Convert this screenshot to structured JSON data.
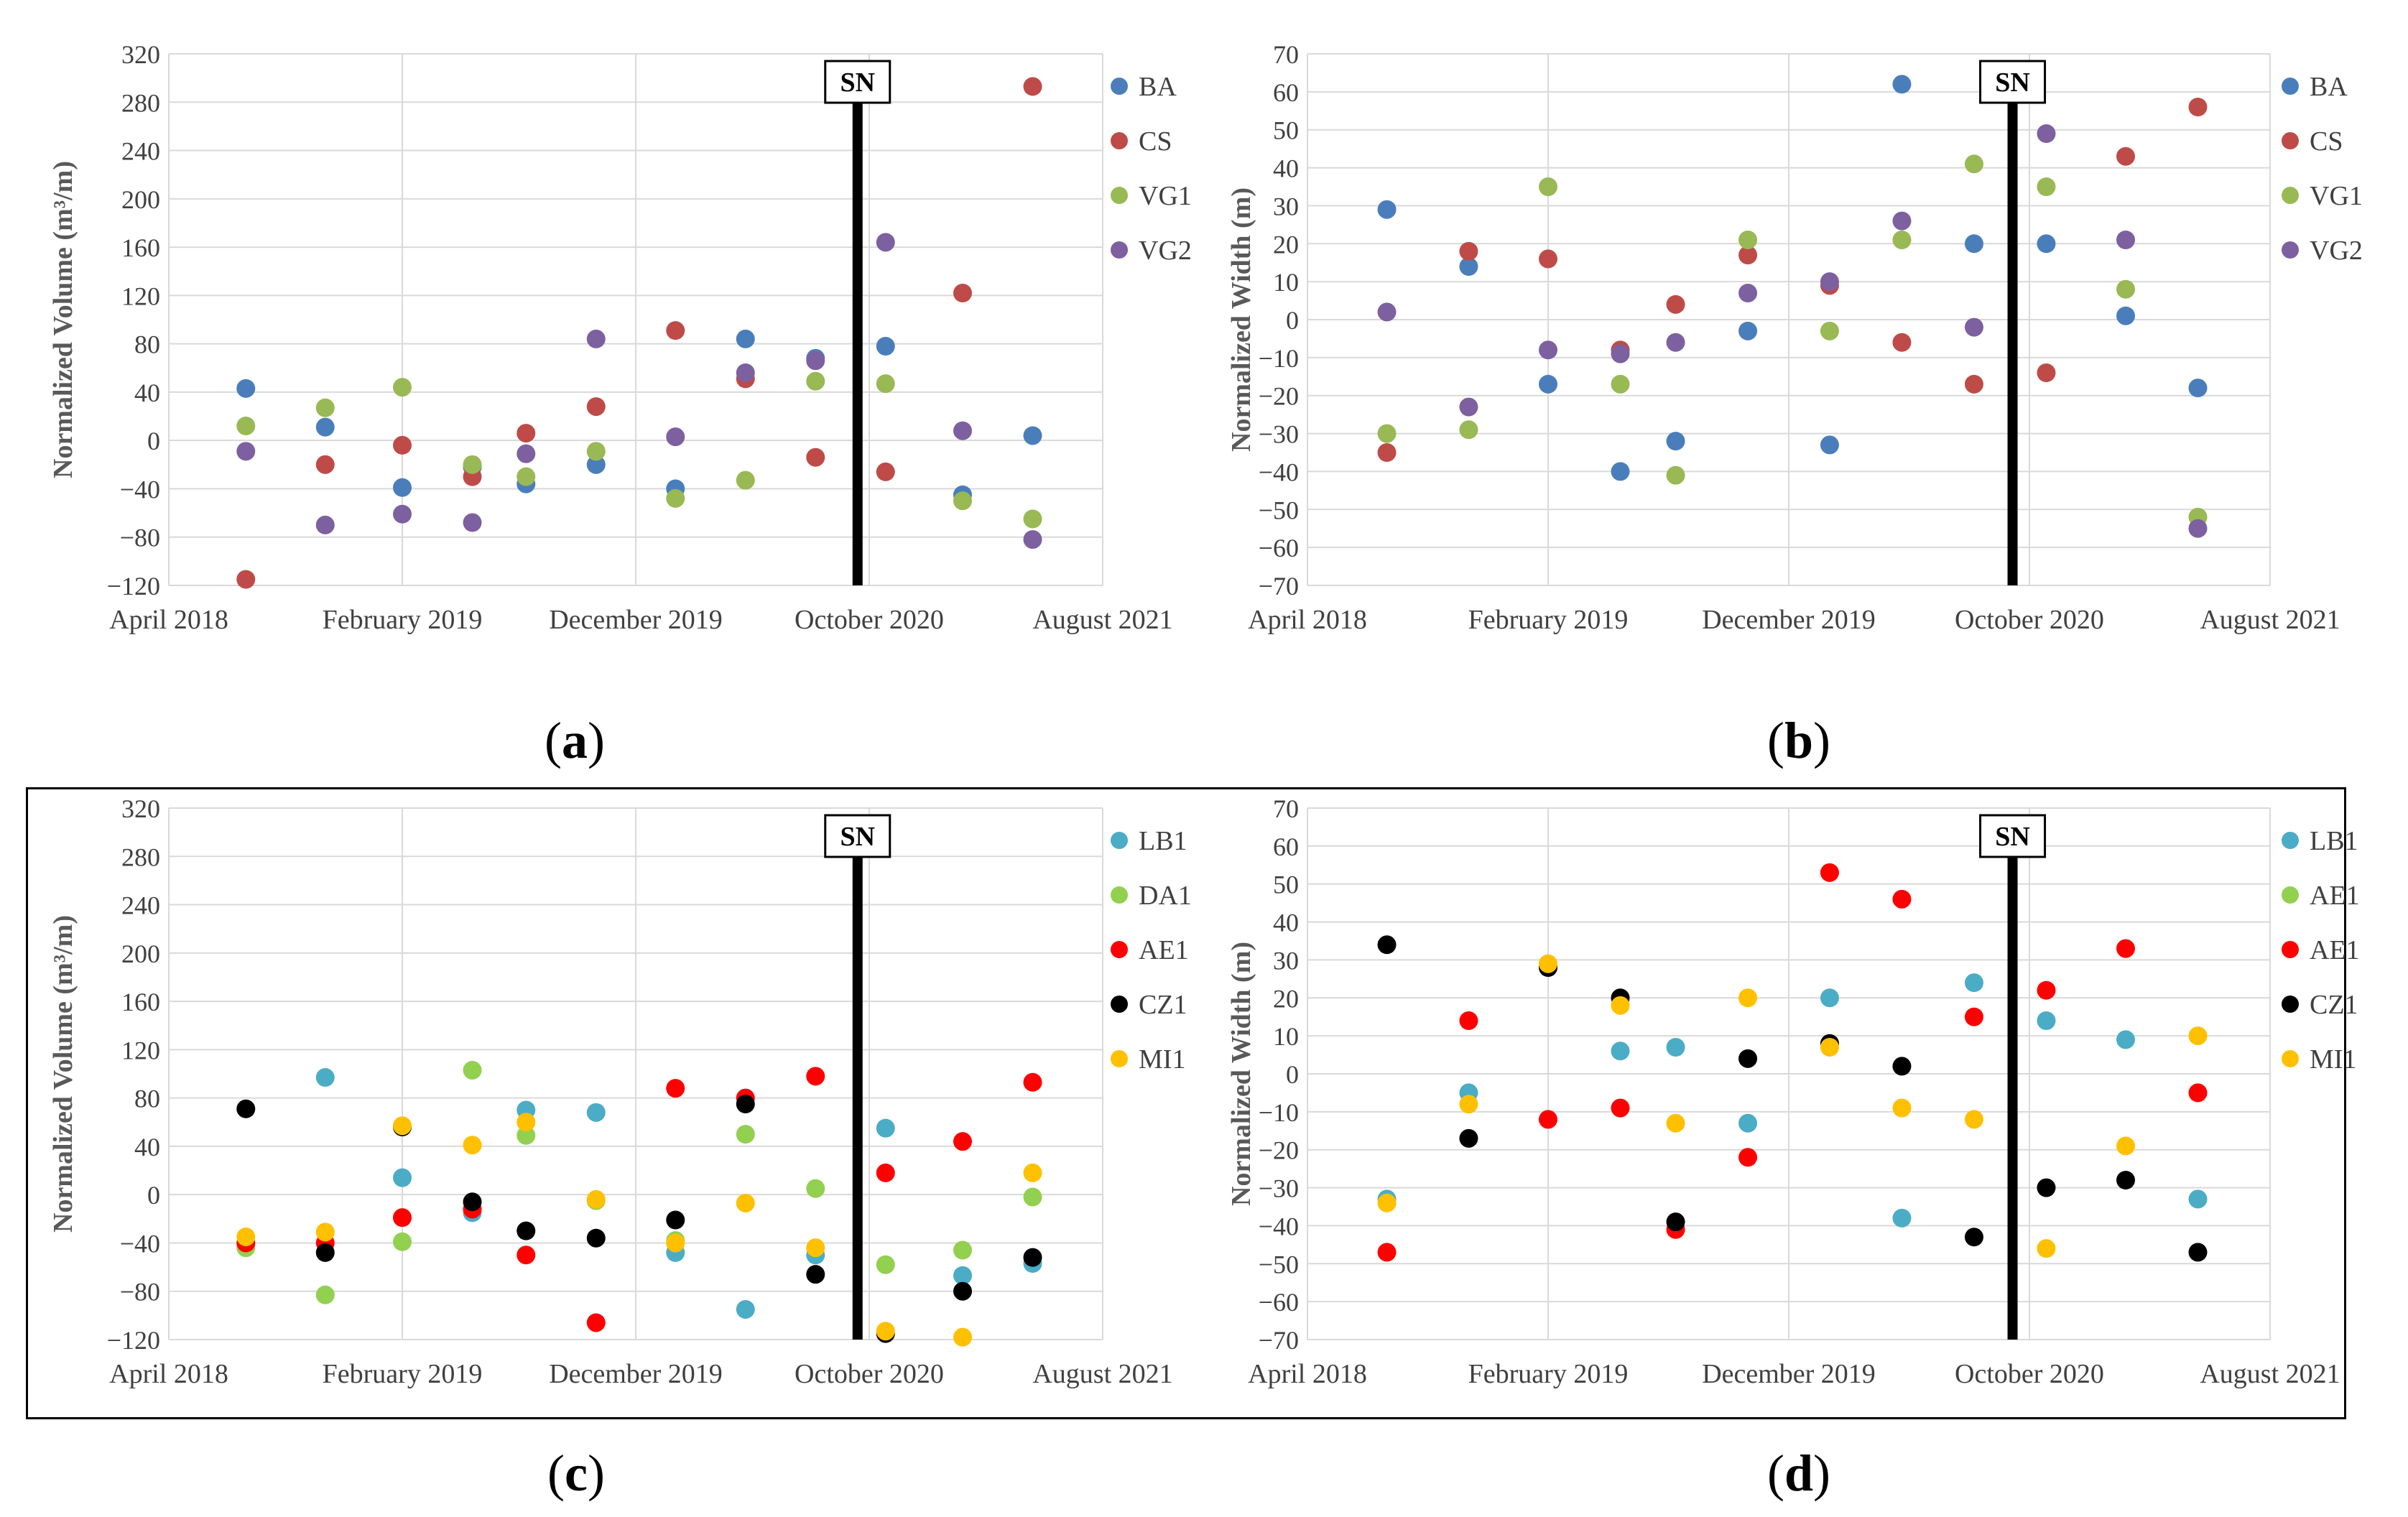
{
  "figure": {
    "captions": [
      "(a)",
      "(b)",
      "(c)",
      "(d)"
    ],
    "marker_label": "SN"
  },
  "chart_data": [
    {
      "type": "scatter",
      "panel": "a",
      "ylabel": "Normalized Volume (m³/m)",
      "ylim": [
        -120,
        320
      ],
      "yticks": [
        -120,
        -80,
        -40,
        0,
        40,
        80,
        120,
        160,
        200,
        240,
        280,
        320
      ],
      "xticklabels": [
        "April 2018",
        "February 2019",
        "December 2019",
        "October 2020",
        "August 2021"
      ],
      "xlim": [
        0,
        40
      ],
      "sn_x": 29.5,
      "series": [
        {
          "name": "BA",
          "color": "#4a7ebb",
          "points": [
            [
              3.3,
              43
            ],
            [
              6.7,
              11
            ],
            [
              10,
              -39
            ],
            [
              13,
              -22
            ],
            [
              15.3,
              -36
            ],
            [
              18.3,
              -20
            ],
            [
              21.7,
              -40
            ],
            [
              24.7,
              84
            ],
            [
              27.7,
              68
            ],
            [
              30.7,
              78
            ],
            [
              34,
              -45
            ],
            [
              37,
              4
            ]
          ]
        },
        {
          "name": "CS",
          "color": "#be4b48",
          "points": [
            [
              3.3,
              -115
            ],
            [
              6.7,
              -20
            ],
            [
              10,
              -4
            ],
            [
              13,
              -30
            ],
            [
              15.3,
              6
            ],
            [
              18.3,
              28
            ],
            [
              21.7,
              91
            ],
            [
              24.7,
              51
            ],
            [
              27.7,
              -14
            ],
            [
              30.7,
              -26
            ],
            [
              34,
              122
            ],
            [
              37,
              293
            ]
          ]
        },
        {
          "name": "VG1",
          "color": "#98b954",
          "points": [
            [
              3.3,
              12
            ],
            [
              6.7,
              27
            ],
            [
              10,
              44
            ],
            [
              13,
              -20
            ],
            [
              15.3,
              -30
            ],
            [
              18.3,
              -9
            ],
            [
              21.7,
              -48
            ],
            [
              24.7,
              -33
            ],
            [
              27.7,
              49
            ],
            [
              30.7,
              47
            ],
            [
              34,
              -50
            ],
            [
              37,
              -65
            ]
          ]
        },
        {
          "name": "VG2",
          "color": "#7d60a0",
          "points": [
            [
              3.3,
              -9
            ],
            [
              6.7,
              -70
            ],
            [
              10,
              -61
            ],
            [
              13,
              -68
            ],
            [
              15.3,
              -11
            ],
            [
              18.3,
              84
            ],
            [
              21.7,
              3
            ],
            [
              24.7,
              56
            ],
            [
              27.7,
              66
            ],
            [
              30.7,
              164
            ],
            [
              34,
              8
            ],
            [
              37,
              -82
            ]
          ]
        }
      ]
    },
    {
      "type": "scatter",
      "panel": "b",
      "ylabel": "Normalized Width (m)",
      "ylim": [
        -70,
        70
      ],
      "yticks": [
        -70,
        -60,
        -50,
        -40,
        -30,
        -20,
        -10,
        0,
        10,
        20,
        30,
        40,
        50,
        60,
        70
      ],
      "xticklabels": [
        "April 2018",
        "February 2019",
        "December 2019",
        "October 2020",
        "August 2021"
      ],
      "xlim": [
        0,
        40
      ],
      "sn_x": 29.3,
      "series": [
        {
          "name": "BA",
          "color": "#4a7ebb",
          "points": [
            [
              3.3,
              29
            ],
            [
              6.7,
              14
            ],
            [
              10,
              -17
            ],
            [
              13,
              -40
            ],
            [
              15.3,
              -32
            ],
            [
              18.3,
              -3
            ],
            [
              21.7,
              -33
            ],
            [
              24.7,
              62
            ],
            [
              27.7,
              20
            ],
            [
              30.7,
              20
            ],
            [
              34,
              1
            ],
            [
              37,
              -18
            ]
          ]
        },
        {
          "name": "CS",
          "color": "#be4b48",
          "points": [
            [
              3.3,
              -35
            ],
            [
              6.7,
              18
            ],
            [
              10,
              16
            ],
            [
              13,
              -8
            ],
            [
              15.3,
              4
            ],
            [
              18.3,
              17
            ],
            [
              21.7,
              9
            ],
            [
              24.7,
              -6
            ],
            [
              27.7,
              -17
            ],
            [
              30.7,
              -14
            ],
            [
              34,
              43
            ],
            [
              37,
              56
            ]
          ]
        },
        {
          "name": "VG1",
          "color": "#98b954",
          "points": [
            [
              3.3,
              -30
            ],
            [
              6.7,
              -29
            ],
            [
              10,
              35
            ],
            [
              13,
              -17
            ],
            [
              15.3,
              -41
            ],
            [
              18.3,
              21
            ],
            [
              21.7,
              -3
            ],
            [
              24.7,
              21
            ],
            [
              27.7,
              41
            ],
            [
              30.7,
              35
            ],
            [
              34,
              8
            ],
            [
              37,
              -52
            ]
          ]
        },
        {
          "name": "VG2",
          "color": "#7d60a0",
          "points": [
            [
              3.3,
              2
            ],
            [
              6.7,
              -23
            ],
            [
              10,
              -8
            ],
            [
              13,
              -9
            ],
            [
              15.3,
              -6
            ],
            [
              18.3,
              7
            ],
            [
              21.7,
              10
            ],
            [
              24.7,
              26
            ],
            [
              27.7,
              -2
            ],
            [
              30.7,
              49
            ],
            [
              34,
              21
            ],
            [
              37,
              -55
            ]
          ]
        }
      ]
    },
    {
      "type": "scatter",
      "panel": "c",
      "ylabel": "Normalized Volume (m³/m)",
      "ylim": [
        -120,
        320
      ],
      "yticks": [
        -120,
        -80,
        -40,
        0,
        40,
        80,
        120,
        160,
        200,
        240,
        280,
        320
      ],
      "xticklabels": [
        "April 2018",
        "February 2019",
        "December 2019",
        "October 2020",
        "August 2021"
      ],
      "xlim": [
        0,
        40
      ],
      "sn_x": 29.5,
      "series": [
        {
          "name": "LB1",
          "color": "#4bacc6",
          "points": [
            [
              3.3,
              -42
            ],
            [
              6.7,
              97
            ],
            [
              10,
              14
            ],
            [
              13,
              -15
            ],
            [
              15.3,
              70
            ],
            [
              18.3,
              68
            ],
            [
              21.7,
              -48
            ],
            [
              24.7,
              -95
            ],
            [
              27.7,
              -50
            ],
            [
              30.7,
              55
            ],
            [
              34,
              -67
            ],
            [
              37,
              -57
            ]
          ]
        },
        {
          "name": "DA1",
          "color": "#92d050",
          "points": [
            [
              3.3,
              -44
            ],
            [
              6.7,
              -83
            ],
            [
              10,
              -39
            ],
            [
              13,
              103
            ],
            [
              15.3,
              49
            ],
            [
              18.3,
              -5
            ],
            [
              21.7,
              -38
            ],
            [
              24.7,
              50
            ],
            [
              27.7,
              5
            ],
            [
              30.7,
              -58
            ],
            [
              34,
              -46
            ],
            [
              37,
              -2
            ]
          ]
        },
        {
          "name": "AE1",
          "color": "#ff0000",
          "points": [
            [
              3.3,
              -40
            ],
            [
              6.7,
              -40
            ],
            [
              10,
              -19
            ],
            [
              13,
              -12
            ],
            [
              15.3,
              -50
            ],
            [
              18.3,
              -106
            ],
            [
              21.7,
              88
            ],
            [
              24.7,
              80
            ],
            [
              27.7,
              98
            ],
            [
              30.7,
              18
            ],
            [
              34,
              44
            ],
            [
              37,
              93
            ]
          ]
        },
        {
          "name": "CZ1",
          "color": "#000000",
          "points": [
            [
              3.3,
              71
            ],
            [
              6.7,
              -48
            ],
            [
              10,
              56
            ],
            [
              13,
              -6
            ],
            [
              15.3,
              -30
            ],
            [
              18.3,
              -36
            ],
            [
              21.7,
              -21
            ],
            [
              24.7,
              75
            ],
            [
              27.7,
              -66
            ],
            [
              30.7,
              -115
            ],
            [
              34,
              -80
            ],
            [
              37,
              -52
            ]
          ]
        },
        {
          "name": "MI1",
          "color": "#ffc000",
          "points": [
            [
              3.3,
              -35
            ],
            [
              6.7,
              -31
            ],
            [
              10,
              57
            ],
            [
              13,
              41
            ],
            [
              15.3,
              60
            ],
            [
              18.3,
              -4
            ],
            [
              21.7,
              -40
            ],
            [
              24.7,
              -7
            ],
            [
              27.7,
              -44
            ],
            [
              30.7,
              -113
            ],
            [
              34,
              -118
            ],
            [
              37,
              18
            ]
          ]
        }
      ]
    },
    {
      "type": "scatter",
      "panel": "d",
      "ylabel": "Normalized Width (m)",
      "ylim": [
        -70,
        70
      ],
      "yticks": [
        -70,
        -60,
        -50,
        -40,
        -30,
        -20,
        -10,
        0,
        10,
        20,
        30,
        40,
        50,
        60,
        70
      ],
      "xticklabels": [
        "April 2018",
        "February 2019",
        "December 2019",
        "October 2020",
        "August 2021"
      ],
      "xlim": [
        0,
        40
      ],
      "sn_x": 29.3,
      "series": [
        {
          "name": "LB1",
          "color": "#4bacc6",
          "points": [
            [
              3.3,
              -33
            ],
            [
              6.7,
              -5
            ],
            [
              10,
              28
            ],
            [
              13,
              6
            ],
            [
              15.3,
              7
            ],
            [
              18.3,
              -13
            ],
            [
              21.7,
              20
            ],
            [
              24.7,
              -38
            ],
            [
              27.7,
              24
            ],
            [
              30.7,
              14
            ],
            [
              34,
              9
            ],
            [
              37,
              -33
            ]
          ]
        },
        {
          "name": "AE1",
          "color": "#92d050",
          "points": []
        },
        {
          "name": "AE1",
          "color": "#ff0000",
          "points": [
            [
              3.3,
              -47
            ],
            [
              6.7,
              14
            ],
            [
              10,
              -12
            ],
            [
              13,
              -9
            ],
            [
              15.3,
              -41
            ],
            [
              18.3,
              -22
            ],
            [
              21.7,
              53
            ],
            [
              24.7,
              46
            ],
            [
              27.7,
              15
            ],
            [
              30.7,
              22
            ],
            [
              34,
              33
            ],
            [
              37,
              -5
            ]
          ]
        },
        {
          "name": "CZ1",
          "color": "#000000",
          "points": [
            [
              3.3,
              34
            ],
            [
              6.7,
              -17
            ],
            [
              10,
              28
            ],
            [
              13,
              20
            ],
            [
              15.3,
              -39
            ],
            [
              18.3,
              4
            ],
            [
              21.7,
              8
            ],
            [
              24.7,
              2
            ],
            [
              27.7,
              -43
            ],
            [
              30.7,
              -30
            ],
            [
              34,
              -28
            ],
            [
              37,
              -47
            ]
          ]
        },
        {
          "name": "MI1",
          "color": "#ffc000",
          "points": [
            [
              3.3,
              -34
            ],
            [
              6.7,
              -8
            ],
            [
              10,
              29
            ],
            [
              13,
              18
            ],
            [
              15.3,
              -13
            ],
            [
              18.3,
              20
            ],
            [
              21.7,
              7
            ],
            [
              24.7,
              -9
            ],
            [
              27.7,
              -12
            ],
            [
              30.7,
              -46
            ],
            [
              34,
              -19
            ],
            [
              37,
              10
            ]
          ]
        }
      ]
    }
  ]
}
